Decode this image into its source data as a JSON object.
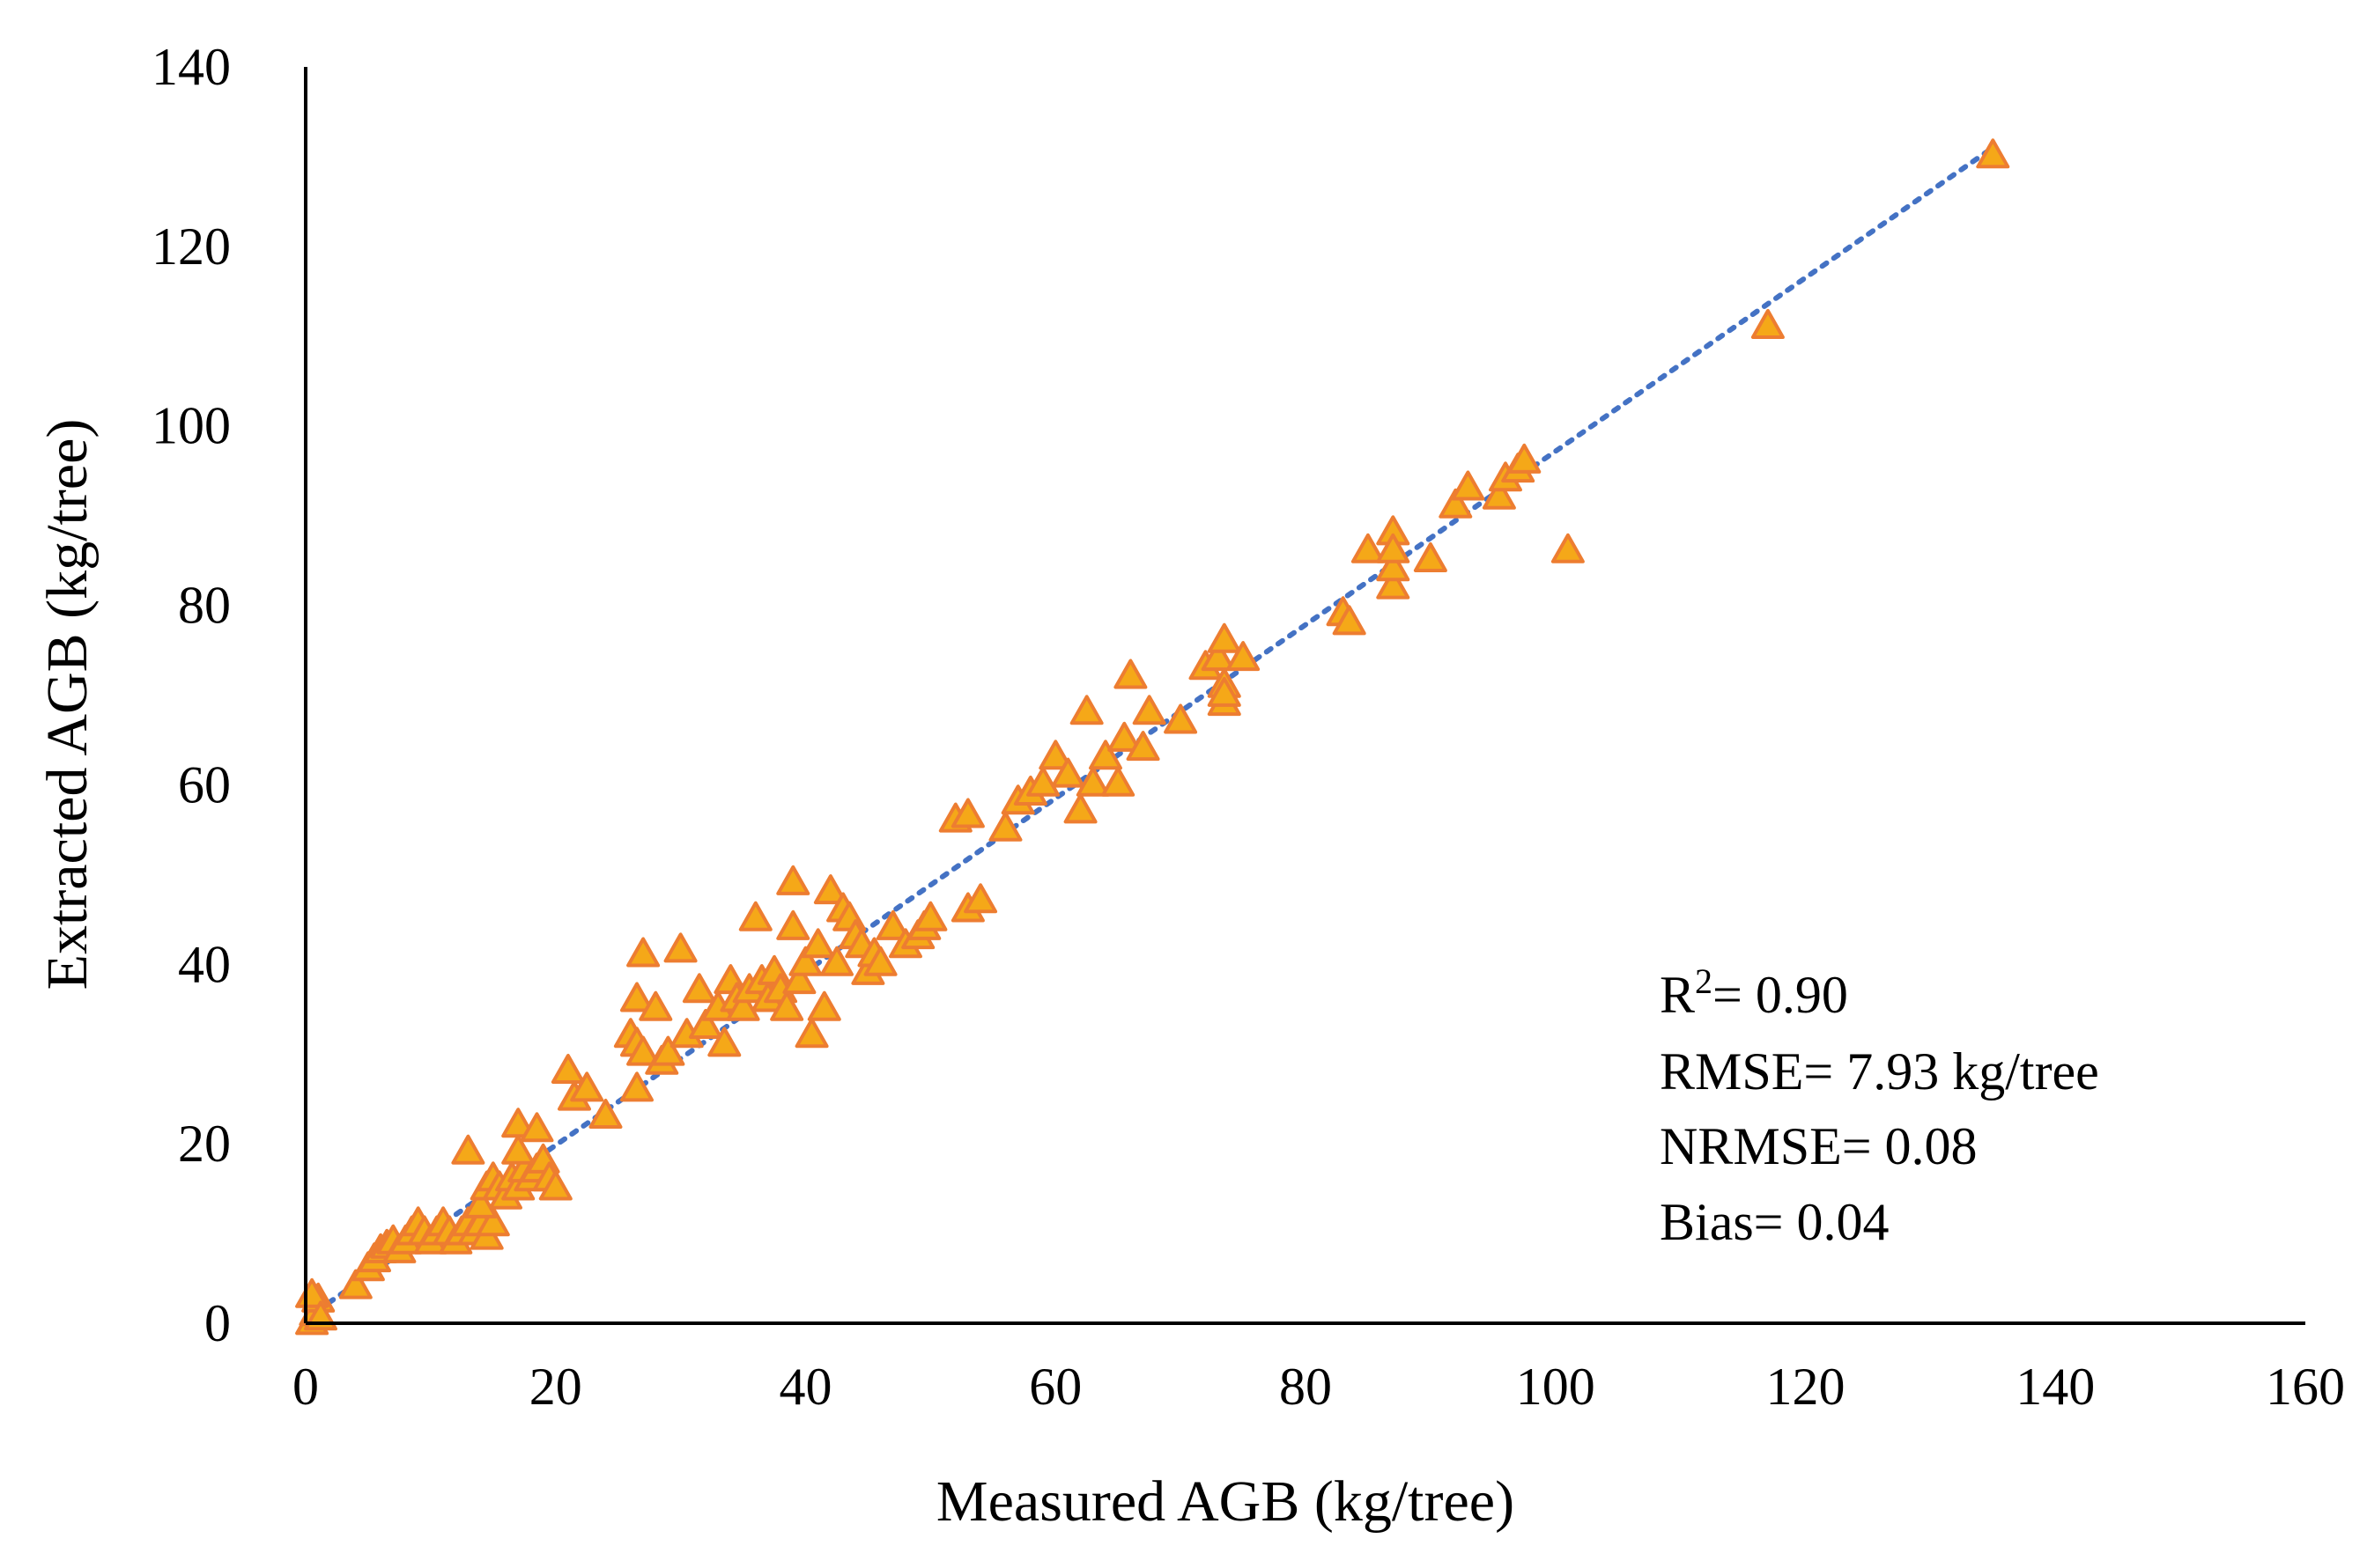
{
  "chart_data": {
    "type": "scatter",
    "xlabel": "Measured AGB (kg/tree)",
    "ylabel": "Extracted AGB (kg/tree)",
    "xlim": [
      0,
      160
    ],
    "ylim": [
      0,
      140
    ],
    "xticks": [
      "0",
      "20",
      "40",
      "60",
      "80",
      "100",
      "120",
      "140",
      "160"
    ],
    "yticks": [
      "0",
      "20",
      "40",
      "60",
      "80",
      "100",
      "120",
      "140"
    ],
    "grid": false,
    "marker": "triangle",
    "marker_fill": "#f5a818",
    "marker_edge": "#ed7d31",
    "trendline": {
      "style": "dotted",
      "color": "#4472c4",
      "x": [
        0,
        135
      ],
      "y": [
        0.5,
        131
      ]
    },
    "stats": {
      "r2_prefix": "R",
      "r2_sup": "2",
      "r2_value": "= 0.90",
      "rmse": "RMSE= 7.93 kg/tree",
      "nrmse": "NRMSE= 0.08",
      "bias": "Bias= 0.04"
    },
    "series": [
      {
        "points": [
          [
            0.5,
            0
          ],
          [
            0.8,
            1
          ],
          [
            1,
            2.5
          ],
          [
            0.5,
            3
          ],
          [
            1.2,
            0.5
          ],
          [
            4,
            4
          ],
          [
            5,
            6
          ],
          [
            5.5,
            7
          ],
          [
            6,
            8
          ],
          [
            6.5,
            8.5
          ],
          [
            7,
            9
          ],
          [
            7.5,
            8
          ],
          [
            8,
            9
          ],
          [
            8.5,
            10
          ],
          [
            9,
            11
          ],
          [
            9.5,
            10
          ],
          [
            10,
            9
          ],
          [
            10.5,
            10
          ],
          [
            11,
            11
          ],
          [
            11.5,
            10
          ],
          [
            12,
            9
          ],
          [
            12.5,
            10
          ],
          [
            13,
            11
          ],
          [
            13.5,
            10
          ],
          [
            14,
            11
          ],
          [
            14.5,
            9.5
          ],
          [
            15,
            11
          ],
          [
            13,
            19
          ],
          [
            14,
            13
          ],
          [
            14.5,
            15
          ],
          [
            15,
            16
          ],
          [
            15.5,
            15
          ],
          [
            16,
            14
          ],
          [
            16.5,
            16
          ],
          [
            17,
            15
          ],
          [
            17.5,
            17
          ],
          [
            18,
            16
          ],
          [
            18.5,
            17
          ],
          [
            19,
            18
          ],
          [
            19.5,
            16
          ],
          [
            20,
            15
          ],
          [
            17,
            22
          ],
          [
            18.5,
            21.5
          ],
          [
            17,
            19
          ],
          [
            21,
            28
          ],
          [
            21.5,
            25
          ],
          [
            22.5,
            26
          ],
          [
            24,
            23
          ],
          [
            26,
            32
          ],
          [
            26.5,
            31
          ],
          [
            26.5,
            36
          ],
          [
            27,
            41
          ],
          [
            28,
            35
          ],
          [
            27,
            30
          ],
          [
            28.5,
            29
          ],
          [
            29,
            30
          ],
          [
            26.5,
            26
          ],
          [
            30,
            41.5
          ],
          [
            30.5,
            32
          ],
          [
            31.5,
            37
          ],
          [
            32,
            33
          ],
          [
            33,
            35
          ],
          [
            33.5,
            31
          ],
          [
            34,
            38
          ],
          [
            34.5,
            36
          ],
          [
            35,
            35
          ],
          [
            35.5,
            37
          ],
          [
            36,
            45
          ],
          [
            36.5,
            38
          ],
          [
            37,
            36
          ],
          [
            37.5,
            39
          ],
          [
            38,
            37
          ],
          [
            38.5,
            35
          ],
          [
            39,
            44
          ],
          [
            39,
            49
          ],
          [
            39.5,
            38
          ],
          [
            40,
            40
          ],
          [
            40.5,
            32
          ],
          [
            41,
            42
          ],
          [
            41.5,
            35
          ],
          [
            42,
            48
          ],
          [
            42.5,
            40
          ],
          [
            43,
            46
          ],
          [
            43.5,
            45
          ],
          [
            44,
            43
          ],
          [
            44.5,
            42
          ],
          [
            45,
            39
          ],
          [
            45.5,
            41
          ],
          [
            46,
            40
          ],
          [
            47,
            44
          ],
          [
            48,
            42
          ],
          [
            49,
            43
          ],
          [
            49.5,
            44
          ],
          [
            50,
            45
          ],
          [
            53,
            46
          ],
          [
            54,
            47
          ],
          [
            52,
            56
          ],
          [
            53,
            56.5
          ],
          [
            56,
            55
          ],
          [
            57,
            58
          ],
          [
            58,
            59
          ],
          [
            59,
            60
          ],
          [
            60,
            63
          ],
          [
            61,
            61
          ],
          [
            62,
            57
          ],
          [
            62.5,
            68
          ],
          [
            63,
            60
          ],
          [
            64,
            63
          ],
          [
            65,
            60
          ],
          [
            65.5,
            65
          ],
          [
            66,
            72
          ],
          [
            67,
            64
          ],
          [
            67.5,
            68
          ],
          [
            70,
            67
          ],
          [
            72,
            73
          ],
          [
            73,
            74
          ],
          [
            73.5,
            76
          ],
          [
            73.5,
            71
          ],
          [
            73.5,
            69
          ],
          [
            73.5,
            70
          ],
          [
            75,
            74
          ],
          [
            83,
            79
          ],
          [
            83.5,
            78
          ],
          [
            85,
            86
          ],
          [
            87,
            88
          ],
          [
            87,
            82
          ],
          [
            87,
            84
          ],
          [
            87,
            86
          ],
          [
            90,
            85
          ],
          [
            92,
            91
          ],
          [
            93,
            93
          ],
          [
            95.5,
            92
          ],
          [
            96,
            94
          ],
          [
            97,
            95
          ],
          [
            97.5,
            96
          ],
          [
            101,
            86
          ],
          [
            117,
            111
          ],
          [
            135,
            130
          ]
        ]
      }
    ]
  }
}
